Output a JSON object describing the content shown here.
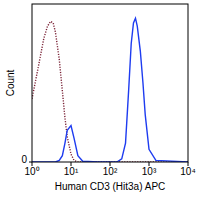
{
  "chart_data": {
    "type": "line",
    "x_label": "Human CD3 (Hit3a) APC",
    "y_label": "Count",
    "log": "x",
    "x": [
      1,
      1.5,
      2,
      2.5,
      3,
      3.5,
      4,
      5,
      6,
      7,
      8,
      10,
      12,
      15,
      20,
      50,
      100,
      150,
      200,
      250,
      300,
      350,
      400,
      450,
      500,
      600,
      700,
      800,
      1000,
      1500,
      10000
    ],
    "series": [
      {
        "color": "#7a2236",
        "line_style": "dotted",
        "values": [
          40,
          62,
          78,
          86,
          89,
          88,
          82,
          65,
          45,
          28,
          16,
          5,
          1,
          0,
          0,
          0,
          0,
          0,
          0,
          0,
          0,
          0,
          0,
          0,
          0,
          0,
          0,
          0,
          0,
          0,
          0
        ]
      },
      {
        "color": "#1e3cf0",
        "line_style": "solid",
        "values": [
          0,
          0,
          0,
          0,
          0,
          0,
          0,
          1,
          4,
          12,
          20,
          23,
          15,
          4,
          0.5,
          0,
          0,
          0,
          2,
          12,
          45,
          75,
          88,
          91,
          86,
          70,
          50,
          30,
          8,
          1,
          0
        ]
      }
    ],
    "xlim": [
      1,
      10000
    ],
    "xticks": [
      {
        "value": 1,
        "label": "10⁰"
      },
      {
        "value": 10,
        "label": "10¹"
      },
      {
        "value": 100,
        "label": "10²"
      },
      {
        "value": 1000,
        "label": "10³"
      },
      {
        "value": 10000,
        "label": "10⁴"
      }
    ],
    "ylim": [
      0,
      100
    ],
    "yticks": [
      0
    ]
  }
}
